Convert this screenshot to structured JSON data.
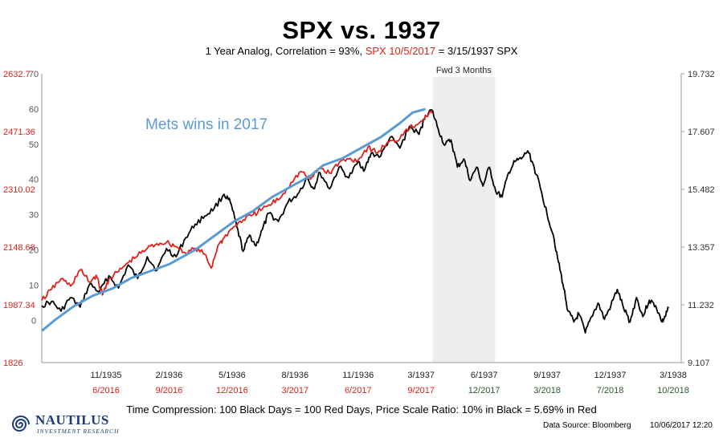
{
  "colors": {
    "red": "#e0201a",
    "black": "#000000",
    "blue": "#5b9bd5",
    "shade": "#eeeeee",
    "logo": "#1a3d7a"
  },
  "subtitle": {
    "part1": "1 Year Analog, Correlation = 93%, ",
    "part2": "SPX 10/5/2017",
    "part3": "  = 3/15/1937 SPX"
  },
  "footer": {
    "compression": "Time Compression: 100 Black Days = 100 Red Days,  Price Scale Ratio: 10% in Black = 5.69% in Red",
    "source": "Data Source: Bloomberg",
    "date": "10/06/2017 12:20"
  },
  "logo": {
    "name": "NAUTILUS",
    "tagline": "INVESTMENT RESEARCH",
    "icon": "nautilus-swirl-icon"
  },
  "chart_data": {
    "type": "line",
    "title": "SPX vs. 1937",
    "annotation_shaded": "Fwd 3 Months",
    "annotation_label": "Mets wins in 2017",
    "t_range": [
      0,
      100
    ],
    "left_outer_axis": {
      "ticks": [
        "2632.7",
        "2471.36",
        "2310.02",
        "2148.68",
        "1987.34",
        "1826"
      ],
      "range": [
        1826,
        2632.7
      ],
      "color": "#e0201a"
    },
    "left_inner_axis": {
      "ticks": [
        "70",
        "60",
        "50",
        "40",
        "30",
        "20",
        "10",
        "0"
      ],
      "range": [
        -12,
        70
      ],
      "color": "#555555"
    },
    "right_axis": {
      "ticks": [
        "19.732",
        "17.607",
        "15.482",
        "13.357",
        "11.232",
        "9.107"
      ],
      "range": [
        9.107,
        19.732
      ]
    },
    "x_labels_1937": [
      "11/1935",
      "2/1936",
      "5/1936",
      "8/1936",
      "11/1936",
      "3/1937",
      "6/1937",
      "9/1937",
      "12/1937",
      "3/1938"
    ],
    "x_labels_2017": [
      "6/2016",
      "9/2016",
      "12/2016",
      "3/2017",
      "6/2017",
      "9/2017",
      "12/2017",
      "3/2018",
      "7/2018",
      "10/2018"
    ],
    "shaded_region_t": [
      61.1,
      70.9
    ],
    "series": [
      {
        "name": "SPX 1937 (black)",
        "axis": "right",
        "color": "#000000",
        "points": [
          [
            0,
            11.2
          ],
          [
            1.5,
            11.35
          ],
          [
            3,
            11.0
          ],
          [
            4.5,
            11.5
          ],
          [
            6,
            11.15
          ],
          [
            7.5,
            12.0
          ],
          [
            9,
            11.7
          ],
          [
            10.5,
            12.3
          ],
          [
            12,
            11.85
          ],
          [
            13.5,
            12.7
          ],
          [
            15,
            12.2
          ],
          [
            16.5,
            13.0
          ],
          [
            18,
            12.5
          ],
          [
            19.5,
            13.3
          ],
          [
            21,
            13.0
          ],
          [
            22.5,
            13.7
          ],
          [
            24,
            14.2
          ],
          [
            25.5,
            14.5
          ],
          [
            27,
            14.8
          ],
          [
            28.5,
            15.3
          ],
          [
            29.5,
            15.0
          ],
          [
            30.5,
            14.1
          ],
          [
            31.5,
            13.2
          ],
          [
            32.5,
            13.8
          ],
          [
            33.5,
            13.4
          ],
          [
            34.5,
            14.0
          ],
          [
            35.5,
            14.6
          ],
          [
            37,
            14.3
          ],
          [
            38.5,
            15.0
          ],
          [
            40,
            15.3
          ],
          [
            41.5,
            15.9
          ],
          [
            42.5,
            15.5
          ],
          [
            43.5,
            16.1
          ],
          [
            45,
            15.5
          ],
          [
            46.5,
            16.3
          ],
          [
            48,
            15.9
          ],
          [
            49.5,
            16.5
          ],
          [
            50.5,
            16.2
          ],
          [
            51.5,
            16.8
          ],
          [
            53,
            16.7
          ],
          [
            54.5,
            17.4
          ],
          [
            56,
            17.0
          ],
          [
            57.5,
            17.8
          ],
          [
            59,
            17.5
          ],
          [
            60,
            18.2
          ],
          [
            61,
            18.4
          ],
          [
            62,
            17.7
          ],
          [
            63,
            17.1
          ],
          [
            64,
            17.3
          ],
          [
            65,
            16.3
          ],
          [
            66,
            16.6
          ],
          [
            67,
            15.8
          ],
          [
            68,
            16.3
          ],
          [
            69,
            15.6
          ],
          [
            70,
            16.3
          ],
          [
            71,
            15.4
          ],
          [
            72,
            15.2
          ],
          [
            73,
            16.1
          ],
          [
            74,
            16.5
          ],
          [
            75,
            16.6
          ],
          [
            76,
            16.9
          ],
          [
            77,
            16.3
          ],
          [
            78,
            15.5
          ],
          [
            79,
            14.6
          ],
          [
            80,
            13.8
          ],
          [
            80.8,
            12.8
          ],
          [
            81.5,
            12.0
          ],
          [
            82.3,
            11.0
          ],
          [
            83.2,
            10.6
          ],
          [
            84,
            10.9
          ],
          [
            85,
            10.2
          ],
          [
            86,
            10.8
          ],
          [
            87,
            11.3
          ],
          [
            88,
            10.7
          ],
          [
            89,
            11.2
          ],
          [
            90,
            11.8
          ],
          [
            91,
            11.1
          ],
          [
            92,
            10.6
          ],
          [
            93,
            11.5
          ],
          [
            94,
            10.8
          ],
          [
            95,
            11.4
          ],
          [
            96,
            11.2
          ],
          [
            97,
            10.6
          ],
          [
            97.5,
            10.8
          ],
          [
            98,
            11.1
          ]
        ]
      },
      {
        "name": "SPX 2017 (red)",
        "axis": "left_outer",
        "color": "#e0201a",
        "points": [
          [
            0,
            2000
          ],
          [
            1.5,
            2030
          ],
          [
            3,
            2060
          ],
          [
            4.5,
            2040
          ],
          [
            6,
            2085
          ],
          [
            7.5,
            2050
          ],
          [
            8.5,
            2070
          ],
          [
            9.5,
            2015
          ],
          [
            10.5,
            2060
          ],
          [
            12,
            2080
          ],
          [
            13.5,
            2105
          ],
          [
            15,
            2125
          ],
          [
            16.5,
            2145
          ],
          [
            18,
            2158
          ],
          [
            19.5,
            2162
          ],
          [
            21,
            2150
          ],
          [
            22.5,
            2132
          ],
          [
            24,
            2145
          ],
          [
            25.5,
            2128
          ],
          [
            26.5,
            2090
          ],
          [
            27.5,
            2150
          ],
          [
            28.5,
            2175
          ],
          [
            30,
            2205
          ],
          [
            31.5,
            2225
          ],
          [
            33,
            2238
          ],
          [
            34.5,
            2255
          ],
          [
            36,
            2270
          ],
          [
            37.5,
            2290
          ],
          [
            39,
            2330
          ],
          [
            40.5,
            2360
          ],
          [
            42,
            2338
          ],
          [
            43.5,
            2370
          ],
          [
            45,
            2355
          ],
          [
            46.5,
            2385
          ],
          [
            48,
            2395
          ],
          [
            49.5,
            2392
          ],
          [
            51,
            2428
          ],
          [
            52.5,
            2412
          ],
          [
            54,
            2440
          ],
          [
            55.5,
            2445
          ],
          [
            57,
            2478
          ],
          [
            58.5,
            2490
          ],
          [
            60,
            2515
          ],
          [
            61,
            2523
          ]
        ]
      },
      {
        "name": "Mets wins in 2017 (blue)",
        "axis": "left_inner",
        "color": "#5b9bd5",
        "points": [
          [
            0,
            -3
          ],
          [
            2,
            0
          ],
          [
            5,
            4
          ],
          [
            8,
            7
          ],
          [
            11,
            9
          ],
          [
            14,
            12
          ],
          [
            17,
            14
          ],
          [
            20,
            16
          ],
          [
            24,
            20
          ],
          [
            27,
            24
          ],
          [
            30,
            28
          ],
          [
            33,
            31
          ],
          [
            36,
            35
          ],
          [
            39,
            38
          ],
          [
            42,
            41
          ],
          [
            44,
            44
          ],
          [
            47,
            46
          ],
          [
            50,
            49
          ],
          [
            53,
            52
          ],
          [
            56,
            56
          ],
          [
            58,
            59
          ],
          [
            60,
            60
          ]
        ]
      }
    ]
  }
}
